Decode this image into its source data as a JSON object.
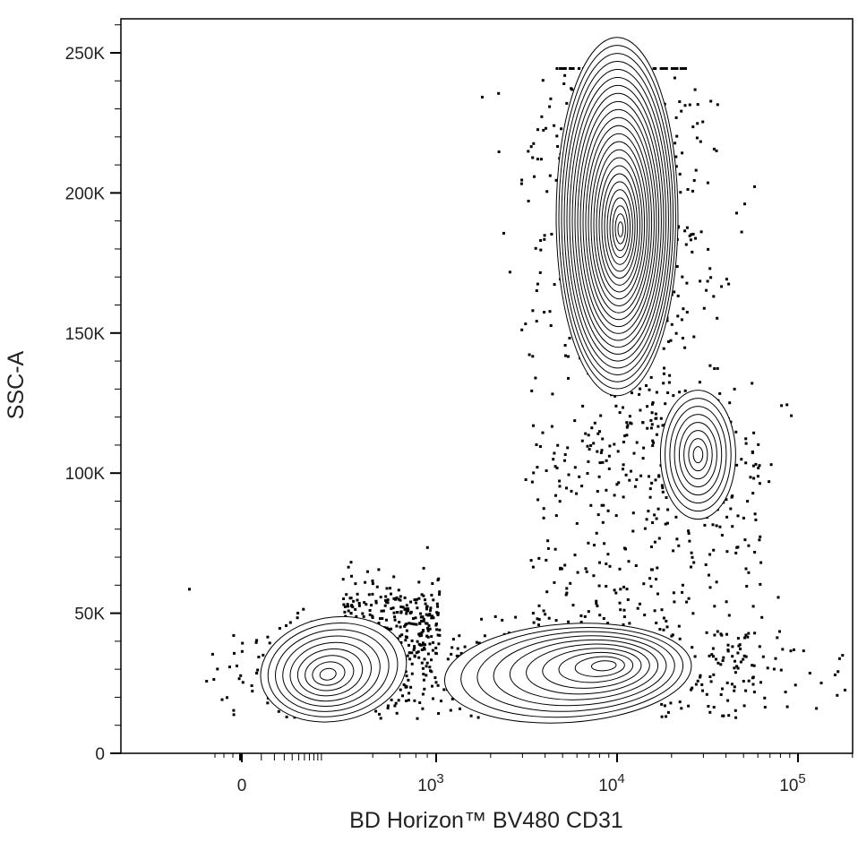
{
  "chart_data": {
    "type": "scatter",
    "subtype": "flow-cytometry-contour-with-outliers",
    "title": "",
    "xlabel": "BD Horizon™  BV480 CD31",
    "ylabel": "SSC-A",
    "x_scale": "biexponential",
    "x_ticks": [
      {
        "label": "0",
        "sup": "",
        "value": 0
      },
      {
        "label": "10",
        "sup": "3",
        "value": 1000
      },
      {
        "label": "10",
        "sup": "4",
        "value": 10000
      },
      {
        "label": "10",
        "sup": "5",
        "value": 100000
      }
    ],
    "y_scale": "linear",
    "ylim": [
      0,
      262144
    ],
    "y_ticks": [
      {
        "label": "0",
        "value": 0
      },
      {
        "label": "50K",
        "value": 50000
      },
      {
        "label": "100K",
        "value": 100000
      },
      {
        "label": "150K",
        "value": 150000
      },
      {
        "label": "200K",
        "value": 200000
      },
      {
        "label": "250K",
        "value": 250000
      }
    ],
    "grid": false,
    "line_color": "#000000",
    "populations": [
      {
        "name": "",
        "x_center": 40,
        "y_center": 30000,
        "contour_levels": 9
      },
      {
        "name": "",
        "x_center": 6000,
        "y_center": 35000,
        "contour_levels": 10
      },
      {
        "name": "",
        "x_center": 10000,
        "y_center": 190000,
        "contour_levels": 24
      },
      {
        "name": "",
        "x_center": 30000,
        "y_center": 105000,
        "contour_levels": 8
      }
    ]
  }
}
